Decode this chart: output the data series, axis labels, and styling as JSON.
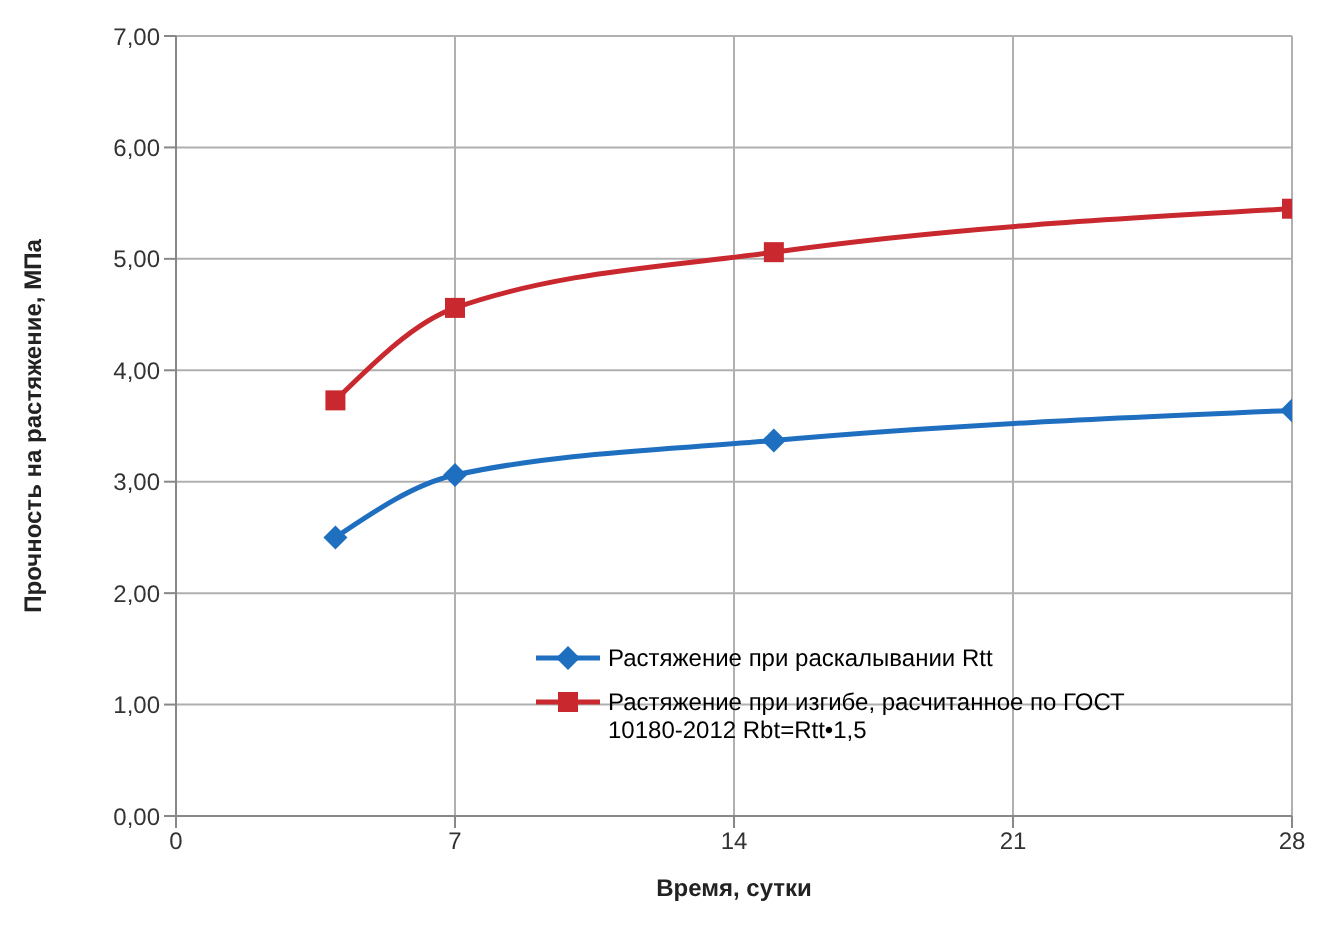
{
  "chart_data": {
    "type": "line",
    "xlabel": "Время, сутки",
    "ylabel": "Прочность на растяжение, МПа",
    "xlim": [
      0,
      28
    ],
    "xticks": [
      0,
      7,
      14,
      21,
      28
    ],
    "ylim": [
      0,
      7
    ],
    "yticks": [
      {
        "value": 0,
        "label": "0,00"
      },
      {
        "value": 1,
        "label": "1,00"
      },
      {
        "value": 2,
        "label": "2,00"
      },
      {
        "value": 3,
        "label": "3,00"
      },
      {
        "value": 4,
        "label": "4,00"
      },
      {
        "value": 5,
        "label": "5,00"
      },
      {
        "value": 6,
        "label": "6,00"
      },
      {
        "value": 7,
        "label": "7,00"
      }
    ],
    "grid": true,
    "legend": "bottom right",
    "series": [
      {
        "name": "Растяжение при раскалывании Rtt",
        "color": "#1f6fc0",
        "marker": "diamond",
        "x": [
          4,
          7,
          15,
          28
        ],
        "values": [
          2.5,
          3.06,
          3.37,
          3.64
        ]
      },
      {
        "name": "Растяжение при изгибе, расчитанное по ГОСТ 10180-2012 Rbt=Rtt•1,5",
        "color": "#c8282e",
        "marker": "square",
        "x": [
          4,
          7,
          15,
          28
        ],
        "values": [
          3.73,
          4.56,
          5.06,
          5.45
        ]
      }
    ]
  }
}
